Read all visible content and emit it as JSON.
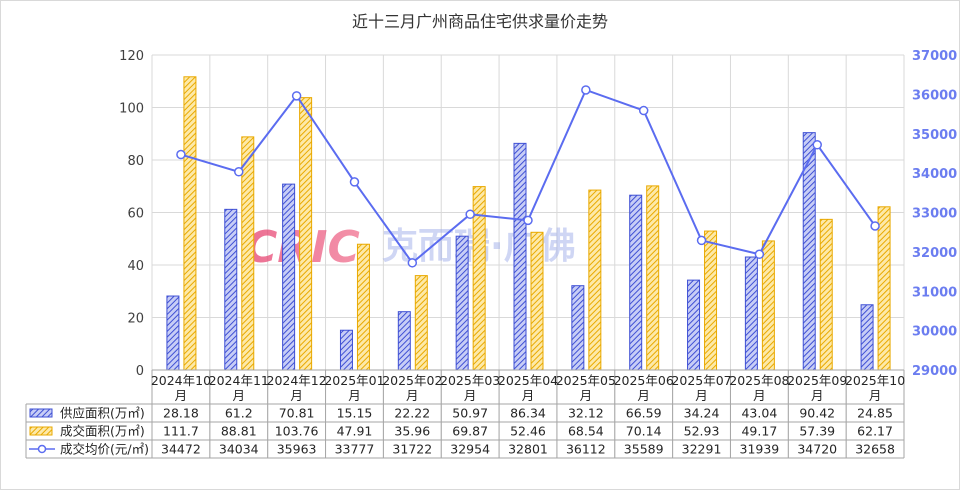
{
  "chart_data": {
    "type": "bar",
    "title": "近十三月广州商品住宅供求量价走势",
    "categories": [
      "2024年10月",
      "2024年11月",
      "2024年12月",
      "2025年01月",
      "2025年02月",
      "2025年03月",
      "2025年04月",
      "2025年05月",
      "2025年06月",
      "2025年07月",
      "2025年08月",
      "2025年09月",
      "2025年10月"
    ],
    "category_lines": [
      [
        "2024年10",
        "月"
      ],
      [
        "2024年11",
        "月"
      ],
      [
        "2024年12",
        "月"
      ],
      [
        "2025年01",
        "月"
      ],
      [
        "2025年02",
        "月"
      ],
      [
        "2025年03",
        "月"
      ],
      [
        "2025年04",
        "月"
      ],
      [
        "2025年05",
        "月"
      ],
      [
        "2025年06",
        "月"
      ],
      [
        "2025年07",
        "月"
      ],
      [
        "2025年08",
        "月"
      ],
      [
        "2025年09",
        "月"
      ],
      [
        "2025年10",
        "月"
      ]
    ],
    "left_axis": {
      "ylim": [
        0,
        120
      ],
      "ticks": [
        "0",
        "20",
        "40",
        "60",
        "80",
        "100",
        "120"
      ]
    },
    "right_axis": {
      "ylim": [
        29000,
        37000
      ],
      "ticks": [
        "29000",
        "30000",
        "31000",
        "32000",
        "33000",
        "34000",
        "35000",
        "36000",
        "37000"
      ]
    },
    "series": [
      {
        "name": "供应面积(万㎡)",
        "type": "bar",
        "axis": "left",
        "color": "#4a5bd8",
        "values": [
          28.18,
          61.2,
          70.81,
          15.15,
          22.22,
          50.97,
          86.34,
          32.12,
          66.59,
          34.24,
          43.04,
          90.42,
          24.85
        ],
        "labels": [
          "28.18",
          "61.2",
          "70.81",
          "15.15",
          "22.22",
          "50.97",
          "86.34",
          "32.12",
          "66.59",
          "34.24",
          "43.04",
          "90.42",
          "24.85"
        ]
      },
      {
        "name": "成交面积(万㎡)",
        "type": "bar",
        "axis": "left",
        "color": "#f0b400",
        "values": [
          111.7,
          88.81,
          103.76,
          47.91,
          35.96,
          69.87,
          52.46,
          68.54,
          70.14,
          52.93,
          49.17,
          57.39,
          62.17
        ],
        "labels": [
          "111.7",
          "88.81",
          "103.76",
          "47.91",
          "35.96",
          "69.87",
          "52.46",
          "68.54",
          "70.14",
          "52.93",
          "49.17",
          "57.39",
          "62.17"
        ]
      },
      {
        "name": "成交均价(元/㎡)",
        "type": "line",
        "axis": "right",
        "color": "#5b6cf0",
        "values": [
          34472,
          34034,
          35963,
          33777,
          31722,
          32954,
          32801,
          36112,
          35589,
          32291,
          31939,
          34720,
          32658
        ],
        "labels": [
          "34472",
          "34034",
          "35963",
          "33777",
          "31722",
          "32954",
          "32801",
          "36112",
          "35589",
          "32291",
          "31939",
          "34720",
          "32658"
        ]
      }
    ],
    "watermark": "CRIC 克而瑞·广佛",
    "grid": true,
    "legend": "data-table-left"
  }
}
